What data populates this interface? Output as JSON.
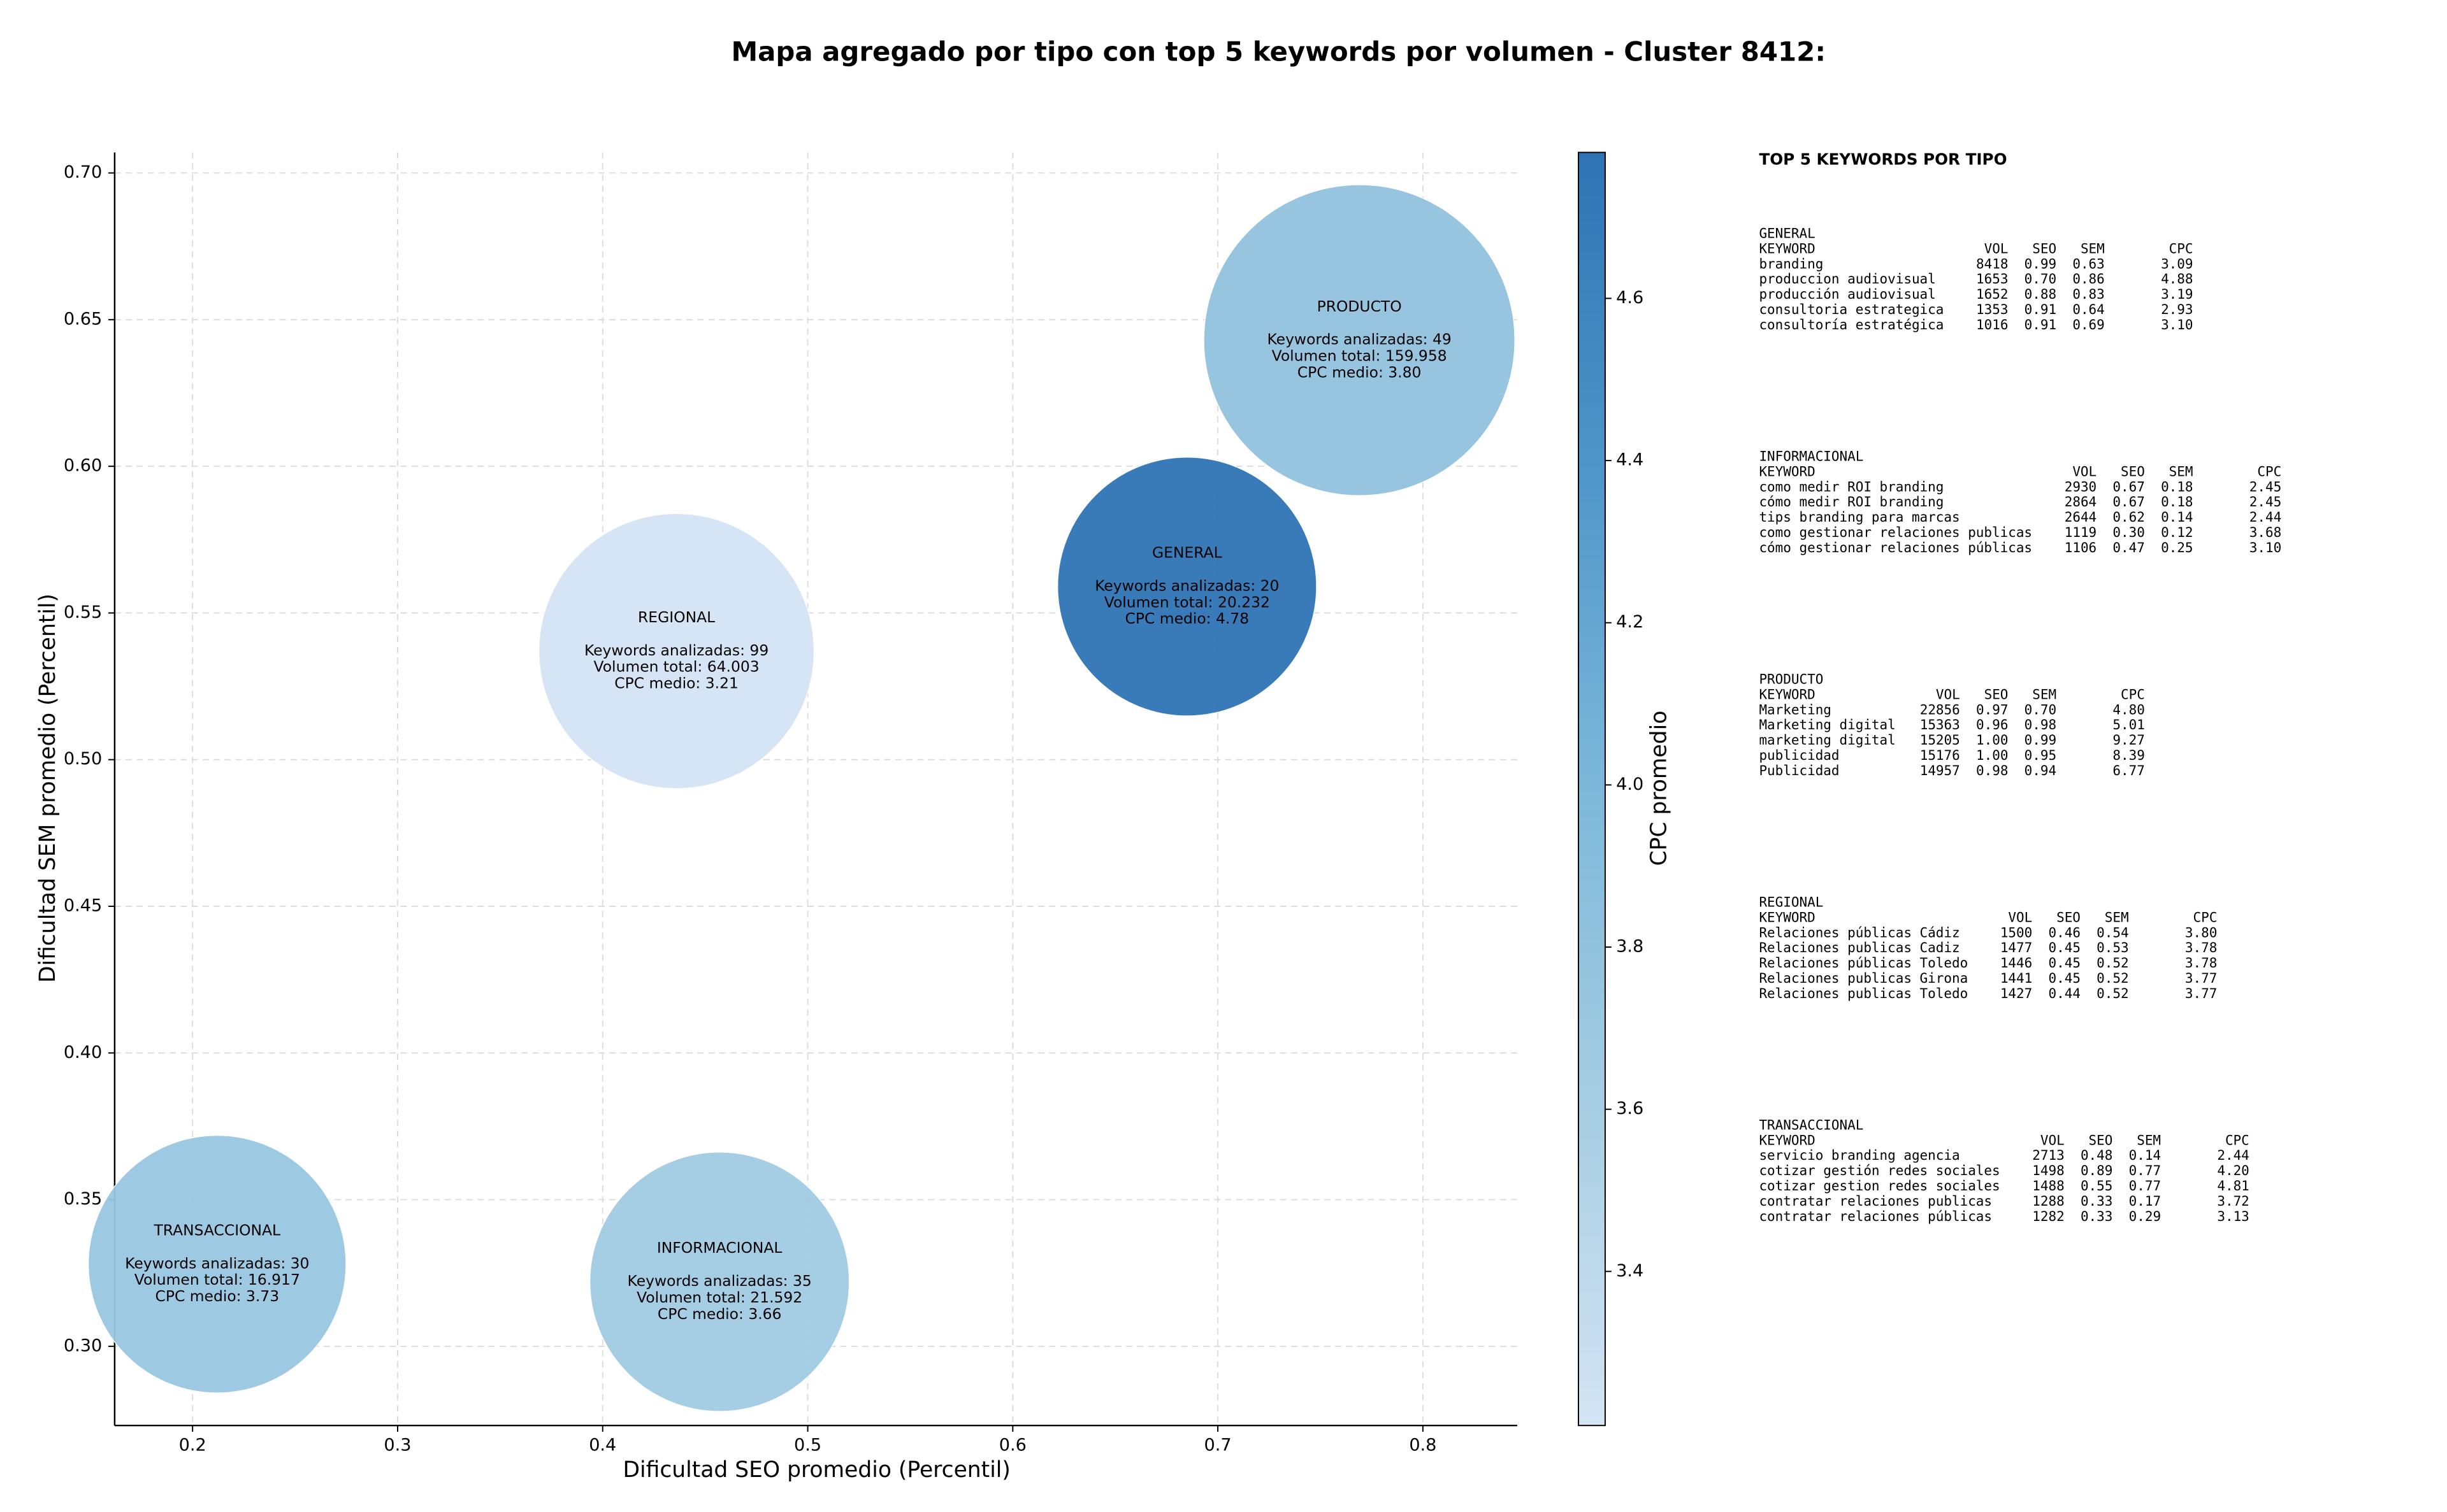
{
  "chart_data": {
    "type": "bubble",
    "title": "Mapa agregado por tipo con top 5 keywords por volumen - Cluster 8412:",
    "xlabel": "Dificultad SEO promedio (Percentil)",
    "ylabel": "Dificultad SEM promedio (Percentil)",
    "labels": [
      "GENERAL",
      "INFORMACIONAL",
      "PRODUCTO",
      "REGIONAL",
      "TRANSACCIONAL"
    ],
    "x": [
      0.685,
      0.457,
      0.769,
      0.436,
      0.212
    ],
    "values": [
      0.559,
      0.322,
      0.643,
      0.537,
      0.328
    ],
    "sizes": [
      20232,
      21592,
      159958,
      64003,
      16917
    ],
    "color_values": [
      4.78,
      3.66,
      3.8,
      3.21,
      3.73
    ],
    "annotations": [
      [
        "Keywords analizadas: 20",
        "Volumen total: 20.232",
        "CPC medio: 4.78"
      ],
      [
        "Keywords analizadas: 35",
        "Volumen total: 21.592",
        "CPC medio: 3.66"
      ],
      [
        "Keywords analizadas: 49",
        "Volumen total: 159.958",
        "CPC medio: 3.80"
      ],
      [
        "Keywords analizadas: 99",
        "Volumen total: 64.003",
        "CPC medio: 3.21"
      ],
      [
        "Keywords analizadas: 30",
        "Volumen total: 16.917",
        "CPC medio: 3.73"
      ]
    ],
    "xlim": [
      0.162,
      0.846
    ],
    "ylim": [
      0.273,
      0.707
    ],
    "xticks": [
      0.2,
      0.3,
      0.4,
      0.5,
      0.6,
      0.7,
      0.8
    ],
    "yticks": [
      {
        "value": 0.3,
        "label": "0.30"
      },
      0.35,
      {
        "value": 0.4,
        "label": "0.40"
      },
      0.45,
      {
        "value": 0.5,
        "label": "0.50"
      },
      0.55,
      {
        "value": 0.6,
        "label": "0.60"
      },
      0.65,
      {
        "value": 0.7,
        "label": "0.70"
      }
    ],
    "grid": true,
    "colorbar": {
      "label": "CPC promedio",
      "lim": [
        3.21,
        4.78
      ],
      "ticks": [
        3.4,
        3.6,
        3.8,
        {
          "value": 4.0,
          "label": "4.0"
        },
        4.2,
        4.4,
        4.6
      ],
      "colormap": [
        "#d4e4f4",
        "#a6cde3",
        "#7db8da",
        "#4f96c9",
        "#2e74b5"
      ]
    }
  },
  "side_panel": {
    "title": "TOP 5 KEYWORDS POR TIPO",
    "columns": [
      "KEYWORD",
      "VOL",
      "SEO",
      "SEM",
      "CPC"
    ],
    "groups": [
      {
        "name": "GENERAL",
        "rows": [
          [
            "branding",
            "8418",
            "0.99",
            "0.63",
            "3.09"
          ],
          [
            "produccion audiovisual",
            "1653",
            "0.70",
            "0.86",
            "4.88"
          ],
          [
            "producción audiovisual",
            "1652",
            "0.88",
            "0.83",
            "3.19"
          ],
          [
            "consultoria estrategica",
            "1353",
            "0.91",
            "0.64",
            "2.93"
          ],
          [
            "consultoría estratégica",
            "1016",
            "0.91",
            "0.69",
            "3.10"
          ]
        ]
      },
      {
        "name": "INFORMACIONAL",
        "rows": [
          [
            "como medir ROI branding",
            "2930",
            "0.67",
            "0.18",
            "2.45"
          ],
          [
            "cómo medir ROI branding",
            "2864",
            "0.67",
            "0.18",
            "2.45"
          ],
          [
            "tips branding para marcas",
            "2644",
            "0.62",
            "0.14",
            "2.44"
          ],
          [
            "como gestionar relaciones publicas",
            "1119",
            "0.30",
            "0.12",
            "3.68"
          ],
          [
            "cómo gestionar relaciones públicas",
            "1106",
            "0.47",
            "0.25",
            "3.10"
          ]
        ]
      },
      {
        "name": "PRODUCTO",
        "rows": [
          [
            "Marketing",
            "22856",
            "0.97",
            "0.70",
            "4.80"
          ],
          [
            "Marketing digital",
            "15363",
            "0.96",
            "0.98",
            "5.01"
          ],
          [
            "marketing digital",
            "15205",
            "1.00",
            "0.99",
            "9.27"
          ],
          [
            "publicidad",
            "15176",
            "1.00",
            "0.95",
            "8.39"
          ],
          [
            "Publicidad",
            "14957",
            "0.98",
            "0.94",
            "6.77"
          ]
        ]
      },
      {
        "name": "REGIONAL",
        "rows": [
          [
            "Relaciones públicas Cádiz",
            "1500",
            "0.46",
            "0.54",
            "3.80"
          ],
          [
            "Relaciones publicas Cadiz",
            "1477",
            "0.45",
            "0.53",
            "3.78"
          ],
          [
            "Relaciones públicas Toledo",
            "1446",
            "0.45",
            "0.52",
            "3.78"
          ],
          [
            "Relaciones publicas Girona",
            "1441",
            "0.45",
            "0.52",
            "3.77"
          ],
          [
            "Relaciones publicas Toledo",
            "1427",
            "0.44",
            "0.52",
            "3.77"
          ]
        ]
      },
      {
        "name": "TRANSACCIONAL",
        "rows": [
          [
            "servicio branding agencia",
            "2713",
            "0.48",
            "0.14",
            "2.44"
          ],
          [
            "cotizar gestión redes sociales",
            "1498",
            "0.89",
            "0.77",
            "4.20"
          ],
          [
            "cotizar gestion redes sociales",
            "1488",
            "0.55",
            "0.77",
            "4.81"
          ],
          [
            "contratar relaciones publicas",
            "1288",
            "0.33",
            "0.17",
            "3.72"
          ],
          [
            "contratar relaciones públicas",
            "1282",
            "0.33",
            "0.29",
            "3.13"
          ]
        ]
      }
    ]
  }
}
